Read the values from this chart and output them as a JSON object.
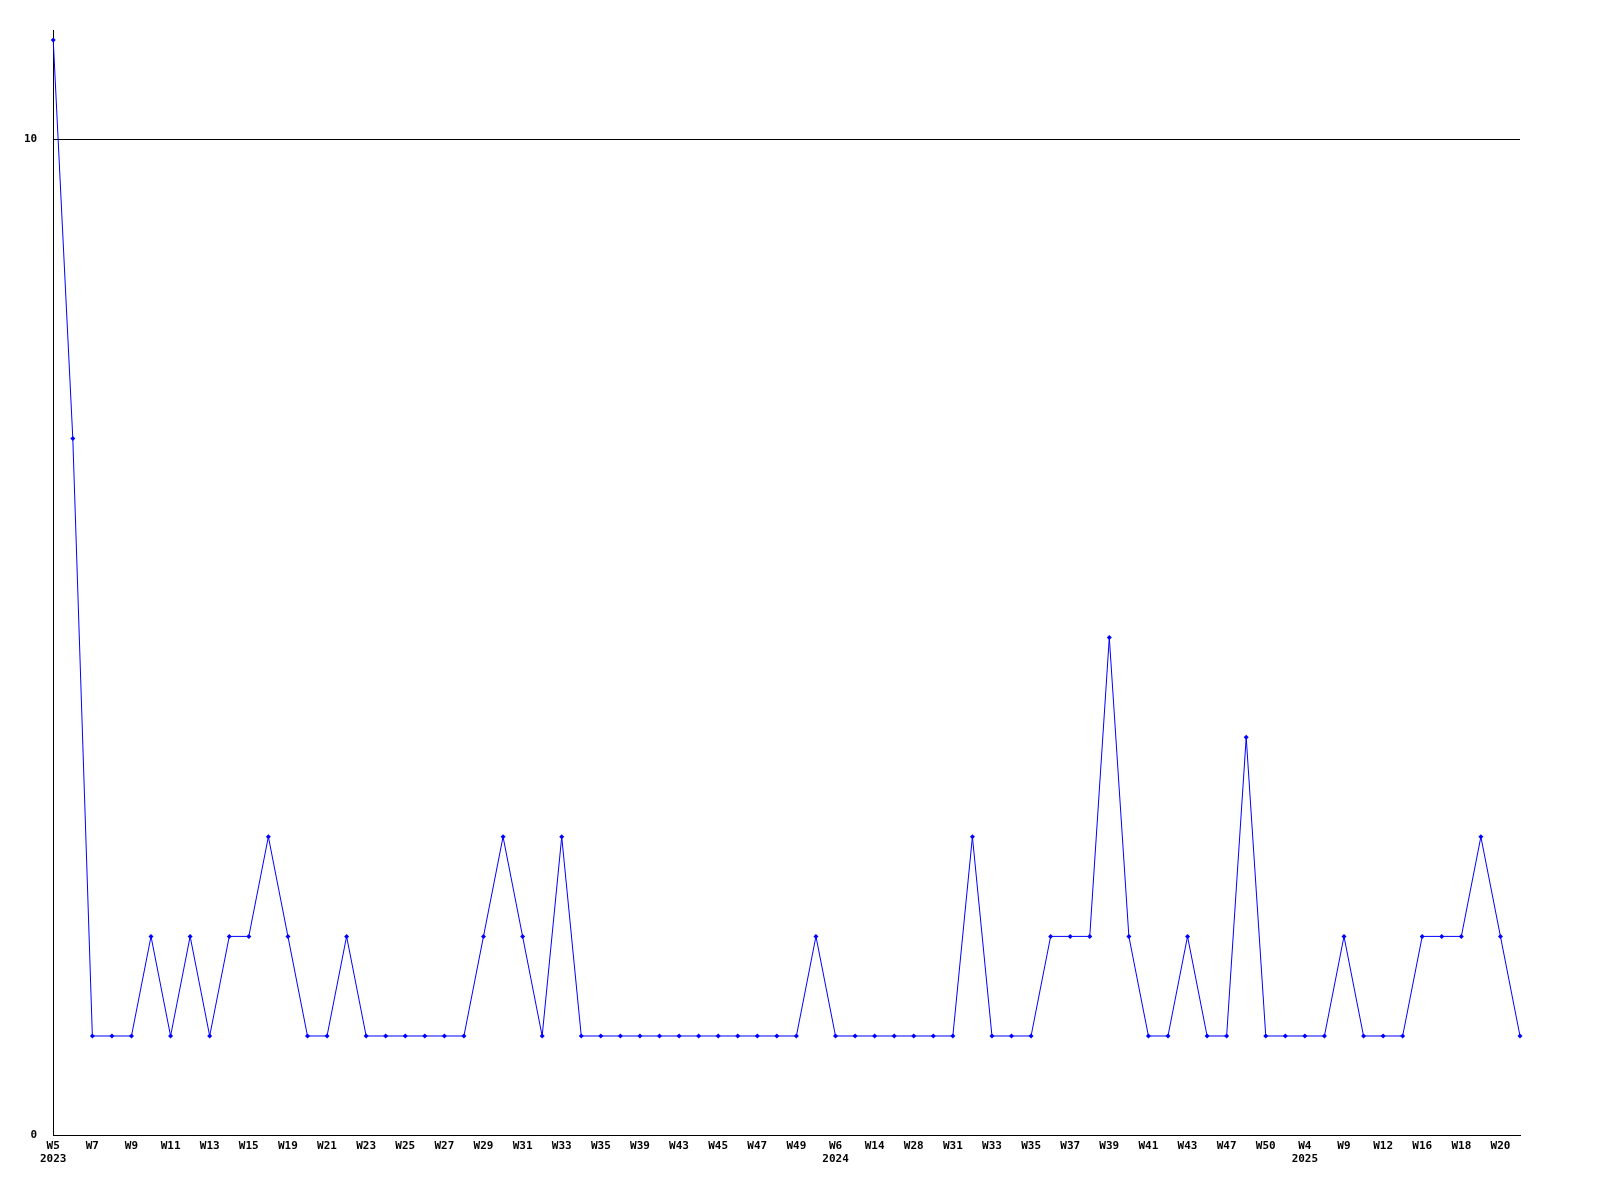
{
  "chart_data": {
    "type": "line",
    "categories": [
      "W5\n2023",
      null,
      "W7",
      null,
      "W9",
      null,
      "W11",
      null,
      "W13",
      null,
      "W15",
      null,
      "W19",
      null,
      "W21",
      null,
      "W23",
      null,
      "W25",
      null,
      "W27",
      null,
      "W29",
      null,
      "W31",
      null,
      "W33",
      null,
      "W35",
      null,
      "W39",
      null,
      "W43",
      null,
      "W45",
      null,
      "W47",
      null,
      "W49",
      null,
      "W6\n2024",
      null,
      "W14",
      null,
      "W28",
      null,
      "W31",
      null,
      "W33",
      null,
      "W35",
      null,
      "W37",
      null,
      "W39",
      null,
      "W41",
      null,
      "W43",
      null,
      "W47",
      null,
      "W50",
      null,
      "W4\n2025",
      null,
      "W9",
      null,
      "W12",
      null,
      "W16",
      null,
      "W18",
      null,
      "W20",
      null
    ],
    "series": [
      {
        "color": "#0000ff",
        "values": [
          11,
          7,
          1,
          1,
          1,
          2,
          1,
          2,
          1,
          2,
          2,
          3,
          2,
          1,
          1,
          2,
          1,
          1,
          1,
          1,
          1,
          1,
          2,
          3,
          2,
          1,
          3,
          1,
          1,
          1,
          1,
          1,
          1,
          1,
          1,
          1,
          1,
          1,
          1,
          2,
          1,
          1,
          1,
          1,
          1,
          1,
          1,
          3,
          1,
          1,
          1,
          2,
          2,
          2,
          5,
          2,
          1,
          1,
          2,
          1,
          1,
          4,
          1,
          1,
          1,
          1,
          2,
          1,
          1,
          1,
          2,
          2,
          2,
          3,
          2,
          1
        ]
      }
    ],
    "ylim": [
      0,
      11.1
    ],
    "yticks": [
      0,
      10
    ],
    "grid": "y",
    "marker": "diamond",
    "line_style": "solid",
    "legend": false
  }
}
